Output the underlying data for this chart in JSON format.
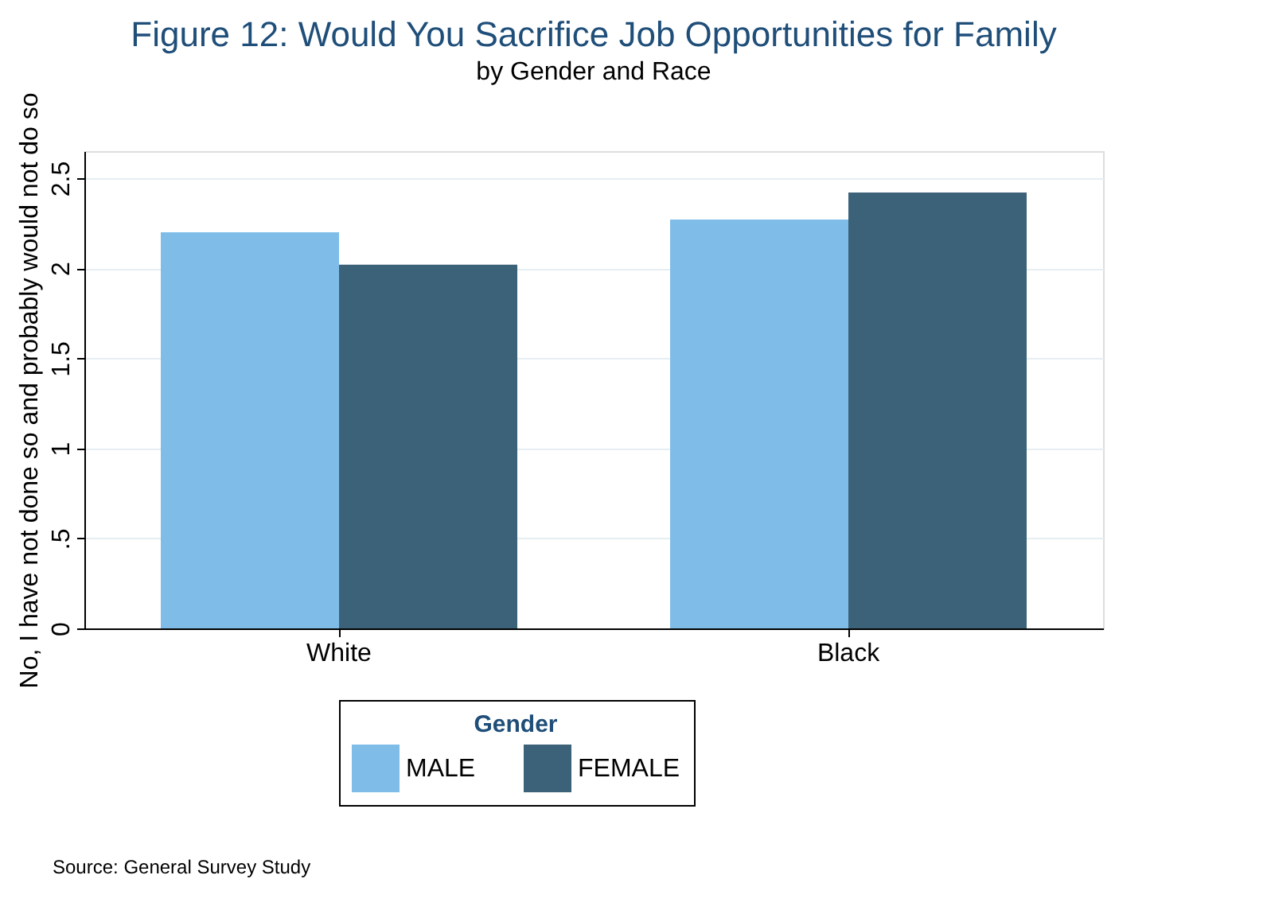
{
  "chart_data": {
    "type": "bar",
    "title": "Figure 12: Would You Sacrifice Job Opportunities for Family",
    "subtitle": "by Gender and Race",
    "ylabel": "No, I have not done so and probably would not do so",
    "legend_title": "Gender",
    "categories": [
      "White",
      "Black"
    ],
    "series": [
      {
        "name": "MALE",
        "color": "#7fbde8",
        "values": [
          2.2,
          2.27
        ]
      },
      {
        "name": "FEMALE",
        "color": "#3c6279",
        "values": [
          2.02,
          2.42
        ]
      }
    ],
    "ylim": [
      0,
      2.65
    ],
    "yticks": [
      0,
      {
        "value": 0.5,
        "label": ".5"
      },
      1,
      1.5,
      2,
      2.5
    ],
    "grid": "y",
    "legend": "bottom",
    "annotations": [
      "Source: General Survey Study"
    ]
  }
}
